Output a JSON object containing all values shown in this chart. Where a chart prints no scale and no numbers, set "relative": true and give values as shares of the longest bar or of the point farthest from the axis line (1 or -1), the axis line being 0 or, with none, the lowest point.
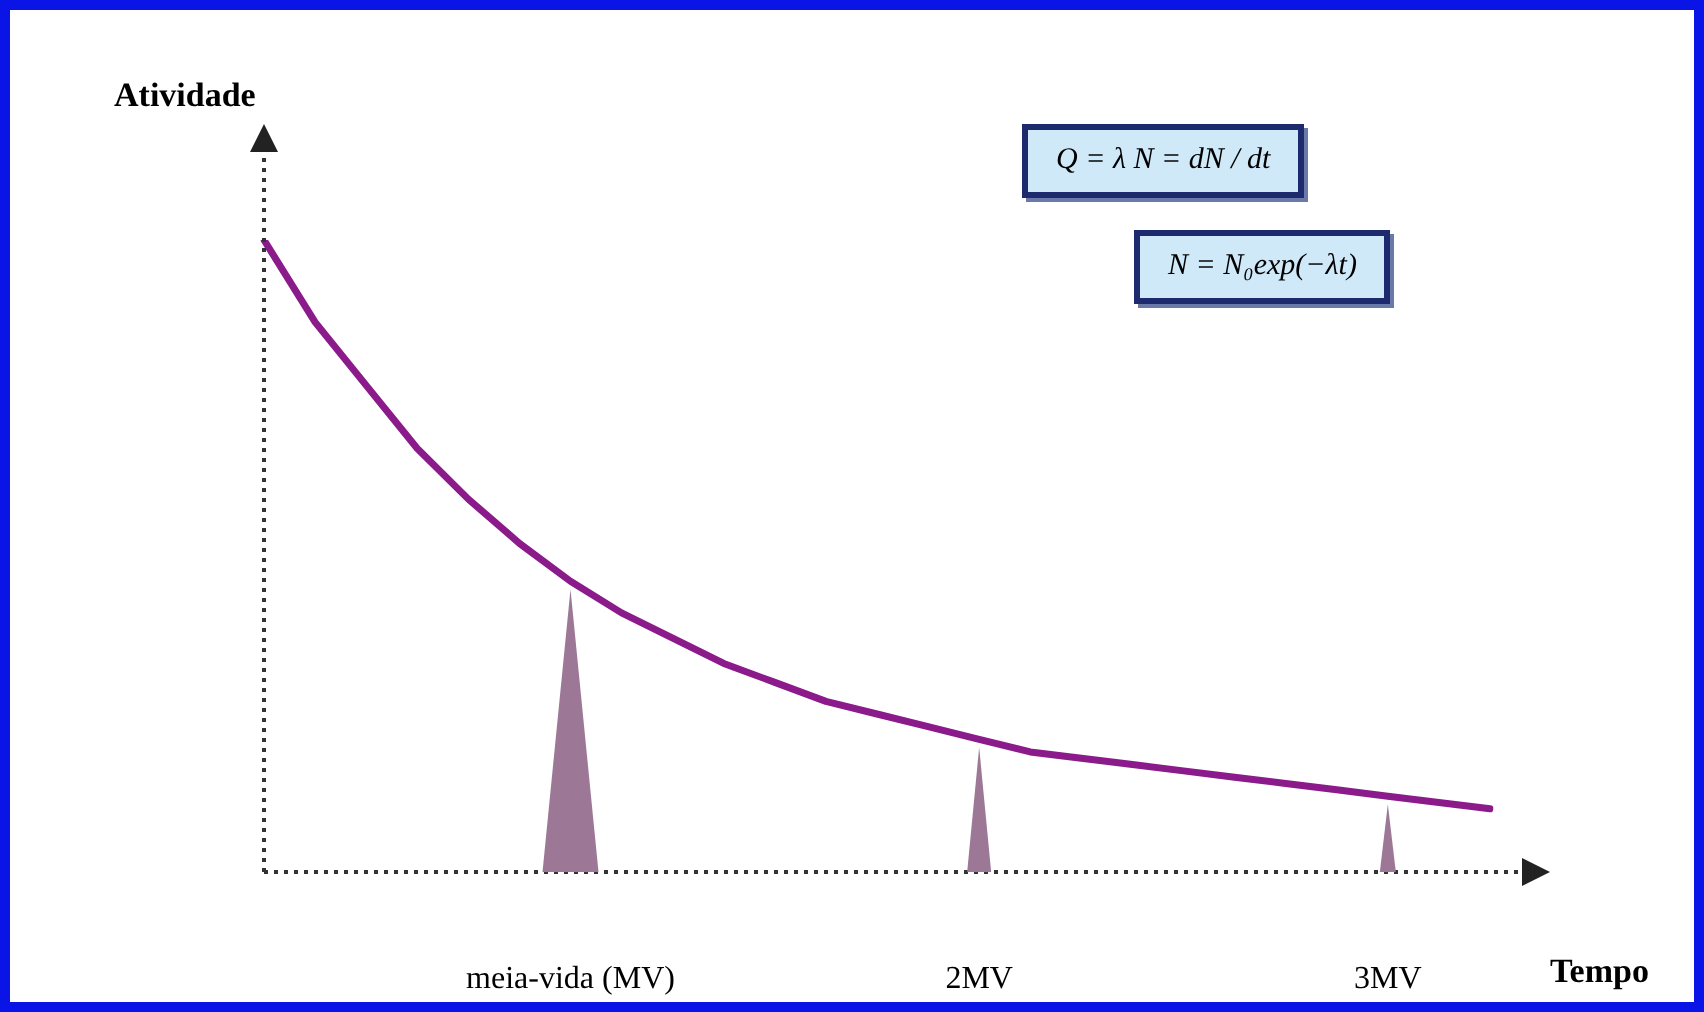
{
  "chart_data": {
    "type": "line",
    "relative": true,
    "xlabel": "Tempo",
    "ylabel": "Atividade",
    "categories": [
      null,
      null,
      null,
      null,
      null,
      null,
      "meia-vida (MV)",
      null,
      null,
      null,
      null,
      null,
      null,
      null,
      "2MV",
      null,
      null,
      null,
      null,
      null,
      null,
      null,
      "3MV",
      null,
      null
    ],
    "series": [
      {
        "color": "#8b1a8b",
        "values": [
          1.0,
          0.87,
          0.77,
          0.67,
          0.59,
          0.52,
          0.46,
          0.41,
          0.37,
          0.33,
          0.3,
          0.27,
          0.25,
          0.23,
          0.21,
          0.19,
          0.18,
          0.17,
          0.16,
          0.15,
          0.14,
          0.13,
          0.12,
          0.11,
          0.1
        ]
      }
    ],
    "marker": "none",
    "line_style": "solid",
    "grid": false,
    "legend": false,
    "annotations": [
      "Q = λ N = dN / dt",
      "N = N₀exp(−λt)"
    ]
  }
}
